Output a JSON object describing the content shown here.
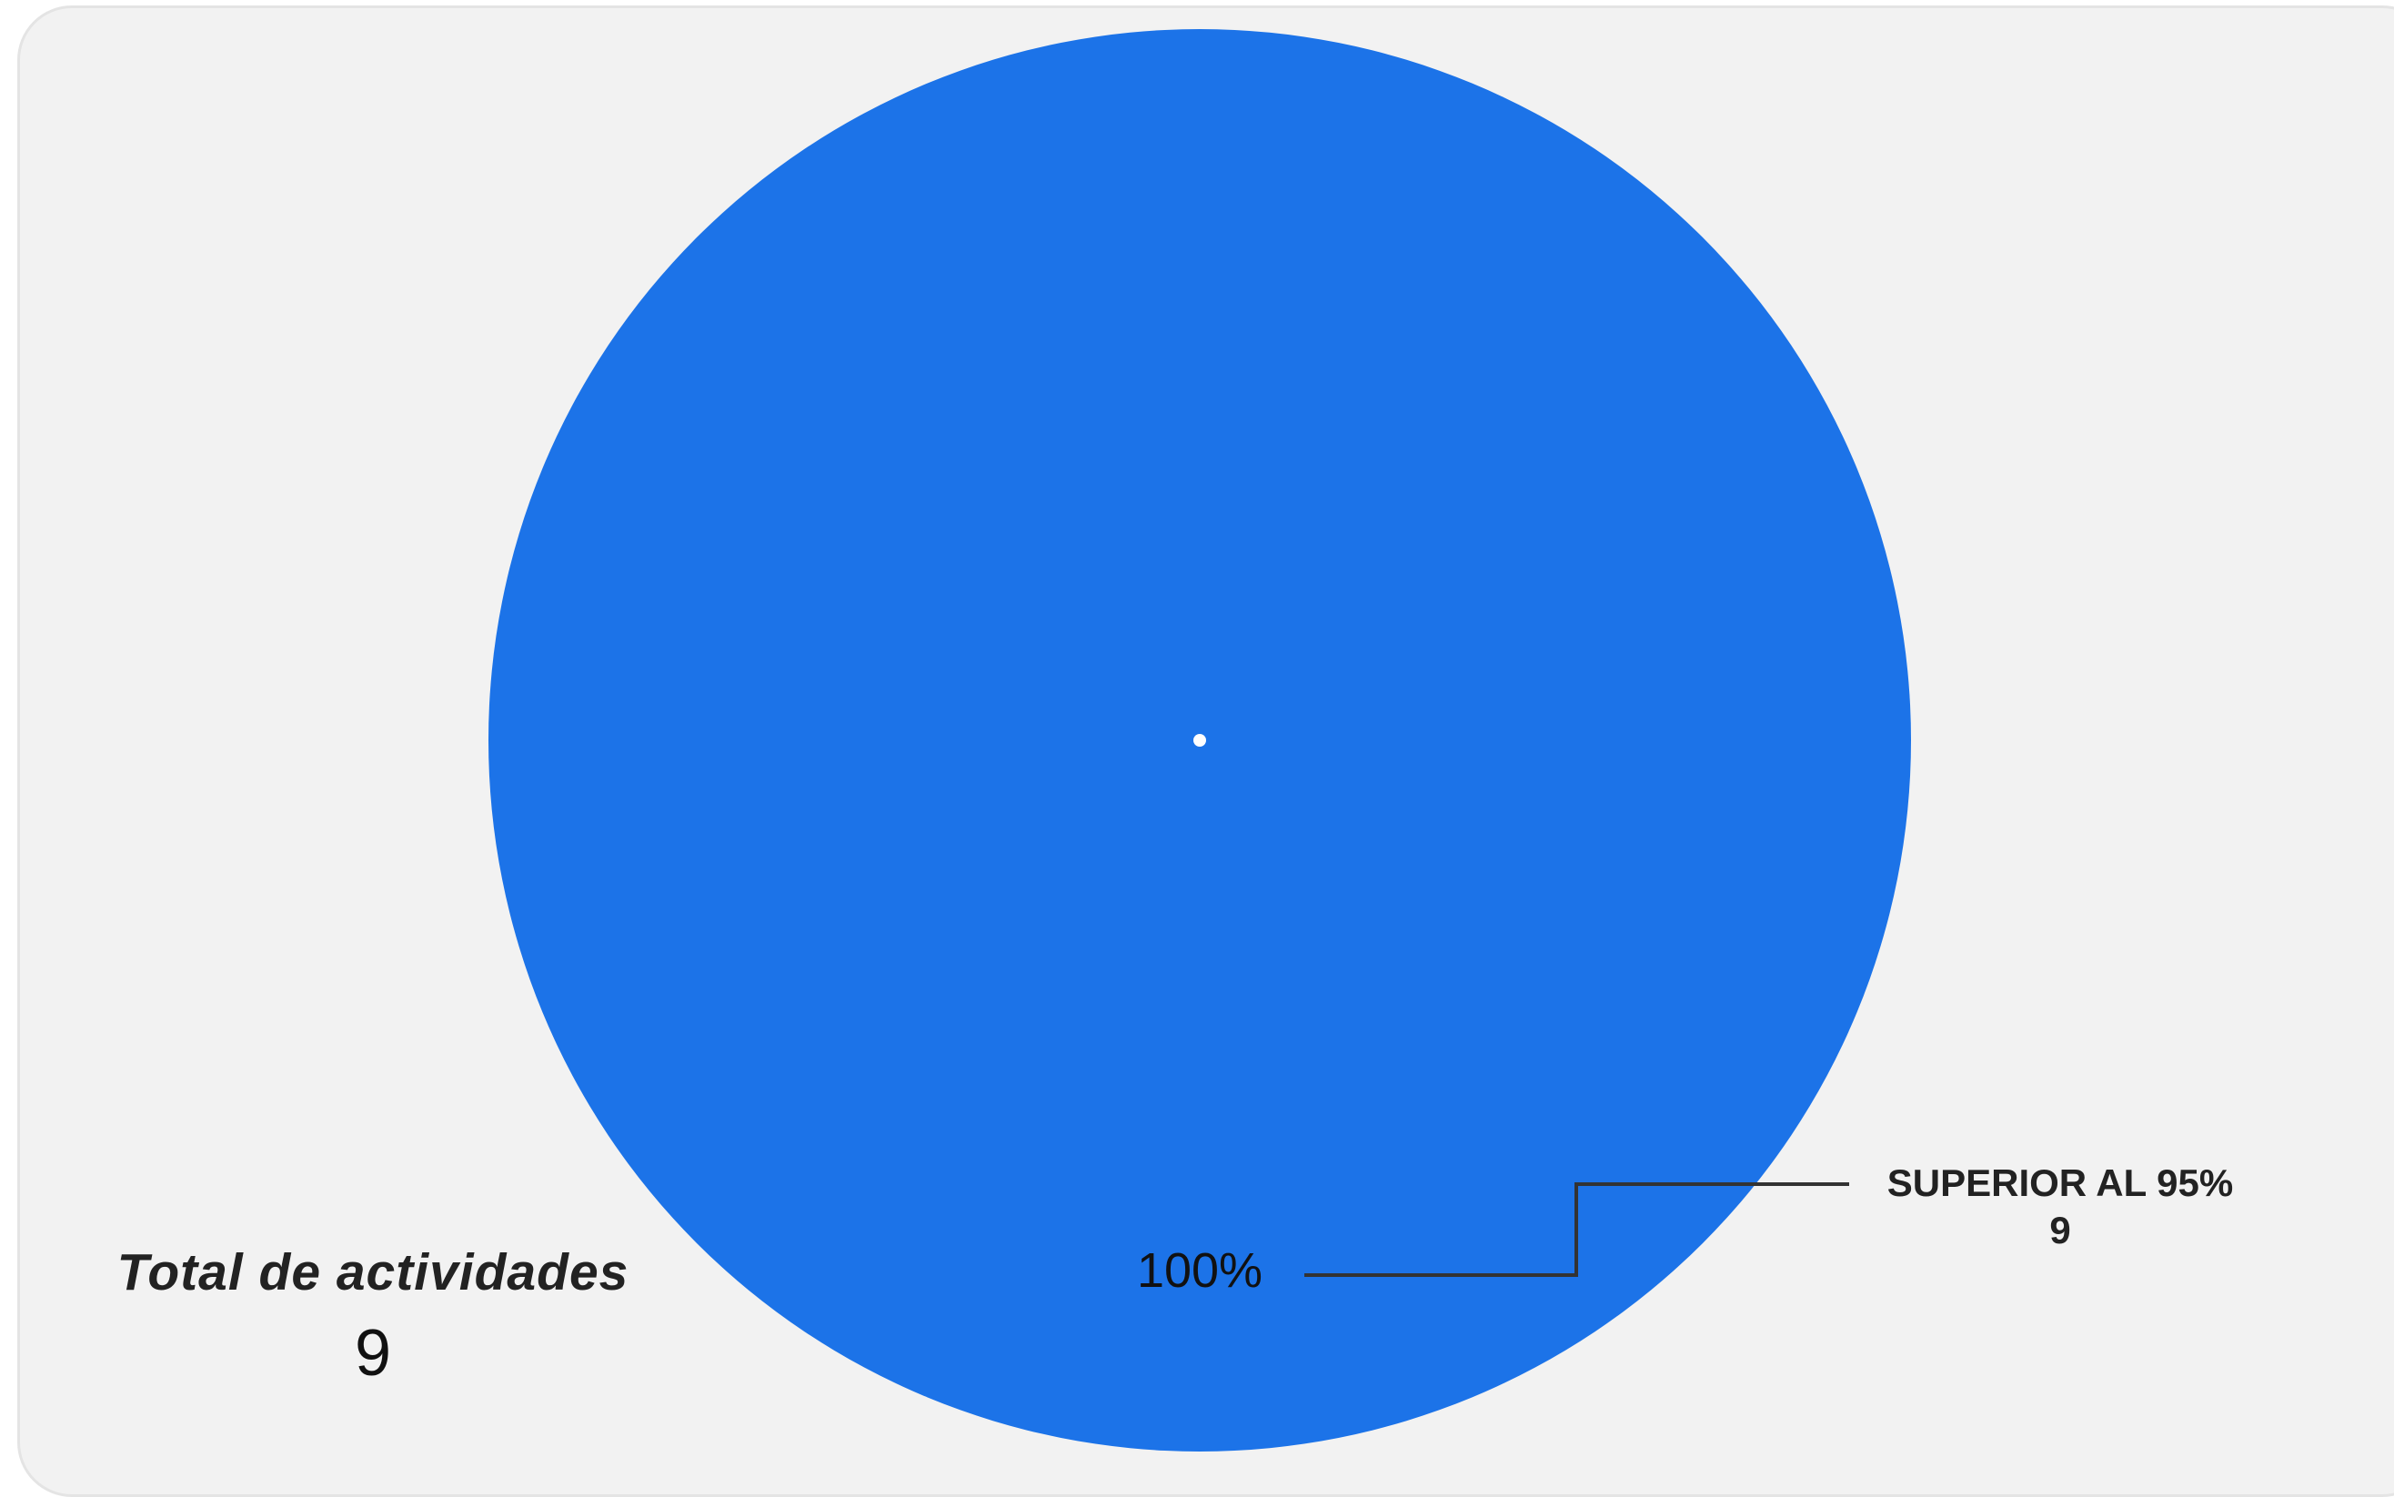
{
  "colors": {
    "background": "#f2f2f2",
    "slice": "#1c73e8",
    "leader_line": "#333333",
    "text": "#222222"
  },
  "chart_data": {
    "type": "pie",
    "title": "",
    "slices": [
      {
        "label": "SUPERIOR AL 95%",
        "value": 9,
        "percent_label": "100%",
        "color": "#1c73e8"
      }
    ]
  },
  "summary": {
    "title": "Total de actividades",
    "value": "9"
  }
}
